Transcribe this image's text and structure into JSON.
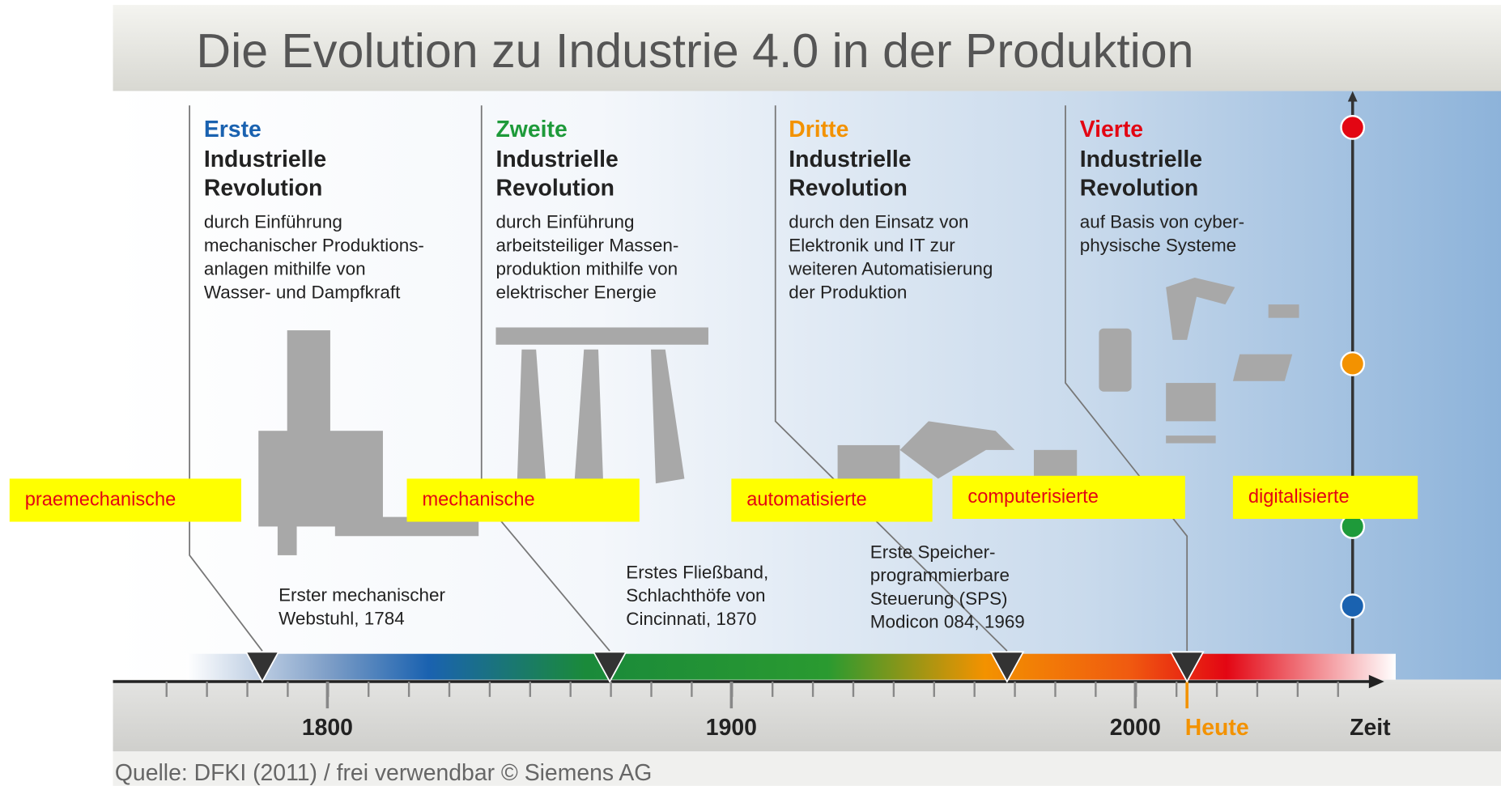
{
  "title": "Die Evolution zu Industrie 4.0 in der Produktion",
  "revolutions": [
    {
      "ordinal": "Erste",
      "heading": [
        "Industrielle",
        "Revolution"
      ],
      "description": [
        "durch Einführung",
        "mechanischer Produktions-",
        "anlagen mithilfe von",
        "Wasser- und Dampfkraft"
      ],
      "milestone": [
        "Erster mechanischer",
        "Webstuhl, 1784"
      ]
    },
    {
      "ordinal": "Zweite",
      "heading": [
        "Industrielle",
        "Revolution"
      ],
      "description": [
        "durch Einführung",
        "arbeitsteiliger Massen-",
        "produktion mithilfe von",
        "elektrischer Energie"
      ],
      "milestone": [
        "Erstes Fließband,",
        "Schlachthöfe von",
        "Cincinnati, 1870"
      ]
    },
    {
      "ordinal": "Dritte",
      "heading": [
        "Industrielle",
        "Revolution"
      ],
      "description": [
        "durch den Einsatz von",
        "Elektronik und IT zur",
        "weiteren Automatisierung",
        "der Produktion"
      ],
      "milestone": [
        "Erste Speicher-",
        "programmierbare",
        "Steuerung (SPS)",
        "Modicon 084, 1969"
      ]
    },
    {
      "ordinal": "Vierte",
      "heading": [
        "Industrielle",
        "Revolution"
      ],
      "description": [
        "auf Basis von cyber-",
        "physische Systeme"
      ]
    }
  ],
  "stage_labels": [
    "praemechanische",
    "mechanische",
    "automatisierte",
    "computerisierte",
    "digitalisierte"
  ],
  "timeline": {
    "years": [
      "1800",
      "1900",
      "2000"
    ],
    "today": "Heute",
    "axis_label": "Zeit"
  },
  "source": "Quelle: DFKI (2011) / frei verwendbar © Siemens AG"
}
